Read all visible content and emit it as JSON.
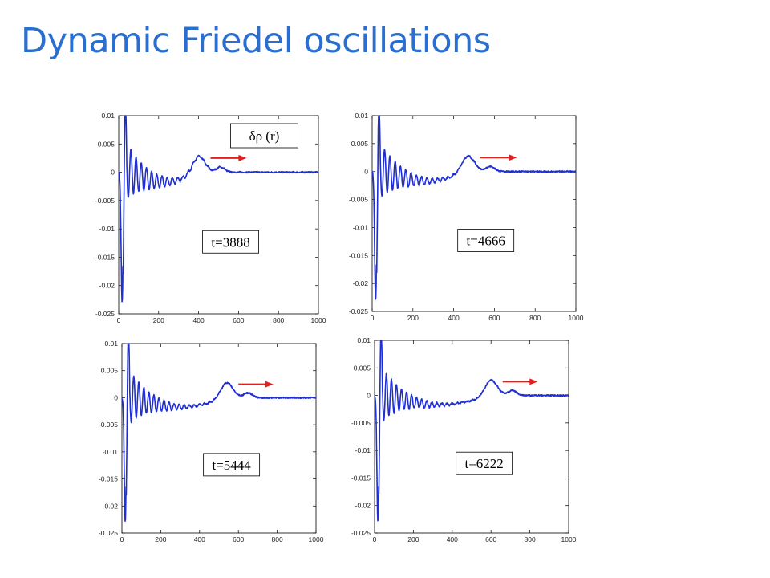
{
  "slide": {
    "title": "Dynamic Friedel oscillations",
    "accent_color": "#2a6fd0"
  },
  "chart_data": [
    {
      "type": "line",
      "legend": "δρ (r)",
      "legend_placement": "top-right",
      "annotation": "t=3888",
      "front_position": 400,
      "xlim": [
        0,
        1000
      ],
      "ylim": [
        -0.025,
        0.01
      ],
      "xticks": [
        0,
        200,
        400,
        600,
        800,
        1000
      ],
      "xtick_labels": [
        "0",
        "200",
        "400",
        "600",
        "800",
        "1000"
      ],
      "yticks": [
        0.01,
        0.005,
        0,
        -0.005,
        -0.01,
        -0.015,
        -0.02,
        -0.025
      ],
      "ytick_labels": [
        "0.01",
        "0.005",
        "0",
        "-0.005",
        "-0.01",
        "-0.015",
        "-0.02",
        "-0.025"
      ],
      "series_color": "#1f2fd0",
      "arrow_color": "#e0201e",
      "grid": false
    },
    {
      "type": "line",
      "annotation": "t=4666",
      "front_position": 470,
      "xlim": [
        0,
        1000
      ],
      "ylim": [
        -0.025,
        0.01
      ],
      "xticks": [
        0,
        200,
        400,
        600,
        800,
        1000
      ],
      "xtick_labels": [
        "0",
        "200",
        "400",
        "600",
        "800",
        "1000"
      ],
      "yticks": [
        0.01,
        0.005,
        0,
        -0.005,
        -0.01,
        -0.015,
        -0.02,
        -0.025
      ],
      "ytick_labels": [
        "0.01",
        "0.005",
        "0",
        "-0.005",
        "-0.01",
        "-0.015",
        "-0.02",
        "-0.025"
      ],
      "series_color": "#1f2fd0",
      "arrow_color": "#e0201e",
      "grid": false
    },
    {
      "type": "line",
      "annotation": "t=5444",
      "front_position": 540,
      "xlim": [
        0,
        1000
      ],
      "ylim": [
        -0.025,
        0.01
      ],
      "xticks": [
        0,
        200,
        400,
        600,
        800,
        1000
      ],
      "xtick_labels": [
        "0",
        "200",
        "400",
        "600",
        "800",
        "1000"
      ],
      "yticks": [
        0.01,
        0.005,
        0,
        -0.005,
        -0.01,
        -0.015,
        -0.02,
        -0.025
      ],
      "ytick_labels": [
        "0.01",
        "0.005",
        "0",
        "-0.005",
        "-0.01",
        "-0.015",
        "-0.02",
        "-0.025"
      ],
      "series_color": "#1f2fd0",
      "arrow_color": "#e0201e",
      "grid": false
    },
    {
      "type": "line",
      "annotation": "t=6222",
      "front_position": 600,
      "xlim": [
        0,
        1000
      ],
      "ylim": [
        -0.025,
        0.01
      ],
      "xticks": [
        0,
        200,
        400,
        600,
        800,
        1000
      ],
      "xtick_labels": [
        "0",
        "200",
        "400",
        "600",
        "800",
        "1000"
      ],
      "yticks": [
        0.01,
        0.005,
        0,
        -0.005,
        -0.01,
        -0.015,
        -0.02,
        -0.025
      ],
      "ytick_labels": [
        "0.01",
        "0.005",
        "0",
        "-0.005",
        "-0.01",
        "-0.015",
        "-0.02",
        "-0.025"
      ],
      "series_color": "#1f2fd0",
      "arrow_color": "#e0201e",
      "grid": false
    }
  ]
}
